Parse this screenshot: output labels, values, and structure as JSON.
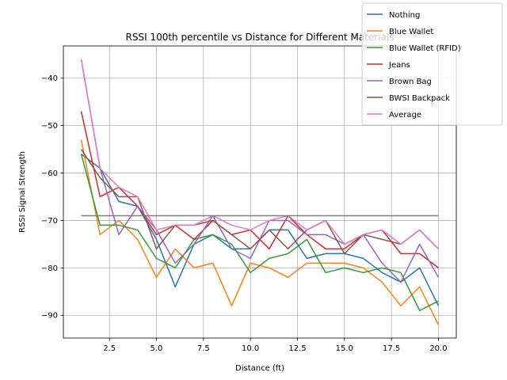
{
  "chart_data": {
    "type": "line",
    "title": "RSSI 100th percentile vs Distance for Different Materials",
    "xlabel": "Distance (ft)",
    "ylabel": "RSSI Signal Strength",
    "xlim": [
      0.05,
      20.95
    ],
    "ylim": [
      -94.8,
      -33.2
    ],
    "xticks": [
      2.5,
      5.0,
      7.5,
      10.0,
      12.5,
      15.0,
      17.5,
      20.0
    ],
    "xtick_labels": [
      "2.5",
      "5.0",
      "7.5",
      "10.0",
      "12.5",
      "15.0",
      "17.5",
      "20.0"
    ],
    "yticks": [
      -90,
      -80,
      -70,
      -60,
      -50,
      -40
    ],
    "ytick_labels": [
      "−90",
      "−80",
      "−70",
      "−60",
      "−50",
      "−40"
    ],
    "grid": true,
    "legend_position": "top-right",
    "x": [
      1,
      2,
      3,
      4,
      5,
      6,
      7,
      8,
      9,
      10,
      11,
      12,
      13,
      14,
      15,
      16,
      17,
      18,
      19,
      20
    ],
    "series": [
      {
        "name": "Nothing",
        "color": "#1f77b4",
        "values": [
          -56,
          -59,
          -66,
          -67,
          -74,
          -84,
          -75,
          -73,
          -76,
          -76,
          -72,
          -72,
          -78,
          -77,
          -77,
          -78,
          -81,
          -83,
          -80,
          -88
        ]
      },
      {
        "name": "Blue Wallet",
        "color": "#ff7f0e",
        "values": [
          -53,
          -73,
          -70,
          -74,
          -82,
          -76,
          -80,
          -79,
          -88,
          -79,
          -80,
          -82,
          -79,
          -79,
          -79,
          -80,
          -83,
          -88,
          -84,
          -92
        ]
      },
      {
        "name": "Blue Wallet (RFID)",
        "color": "#2ca02c",
        "values": [
          -56,
          -71,
          -71,
          -72,
          -78,
          -80,
          -74,
          -73,
          -75,
          -81,
          -78,
          -77,
          -74,
          -81,
          -80,
          -81,
          -80,
          -81,
          -89,
          -87
        ]
      },
      {
        "name": "Jeans",
        "color": "#d62728",
        "values": [
          -47,
          -65,
          -63,
          -67,
          -73,
          -71,
          -74,
          -70,
          -73,
          -72,
          -76,
          -69,
          -73,
          -76,
          -76,
          -73,
          -72,
          -77,
          -77,
          -80
        ]
      },
      {
        "name": "Brown Bag",
        "color": "#9467bd",
        "values": [
          -36,
          -59,
          -73,
          -67,
          -72,
          -79,
          -75,
          -69,
          -76,
          -78,
          -70,
          -70,
          -73,
          -73,
          -75,
          -73,
          -79,
          -83,
          -75,
          -82
        ]
      },
      {
        "name": "BWSI Backpack",
        "color": "#8c564b",
        "values": [
          -55,
          -61,
          -65,
          -65,
          -76,
          -71,
          -71,
          -70,
          -73,
          -76,
          -72,
          -76,
          -72,
          -70,
          -77,
          -73,
          -74,
          -75,
          -72,
          -76
        ]
      },
      {
        "name": "Average",
        "color": "#e377c2",
        "values": [
          -36,
          -59,
          -63,
          -65,
          -72,
          -71,
          -71,
          -69,
          -71,
          -72,
          -70,
          -69,
          -72,
          -70,
          -75,
          -73,
          -72,
          -75,
          -72,
          -76
        ]
      }
    ],
    "reference_line": {
      "color": "#7f7f7f",
      "y": -69,
      "x_start": 1,
      "x_end": 20
    }
  }
}
